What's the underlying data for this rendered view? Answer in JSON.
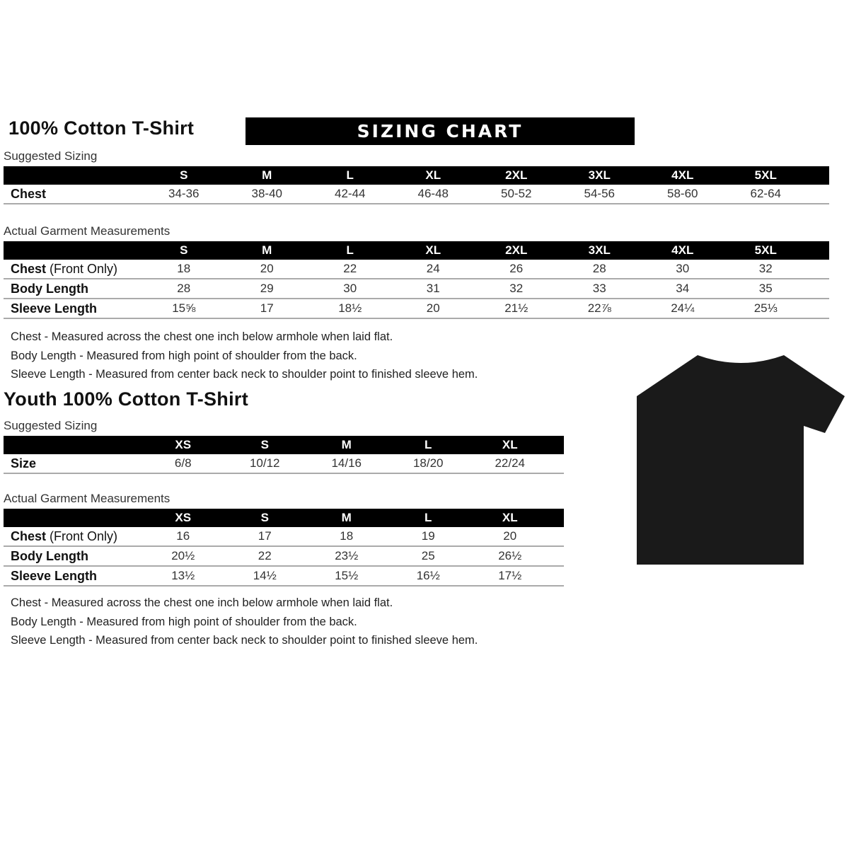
{
  "adult": {
    "title": "100% Cotton T-Shirt",
    "banner": "SIZING CHART",
    "suggested_label": "Suggested Sizing",
    "sizes": [
      "S",
      "M",
      "L",
      "XL",
      "2XL",
      "3XL",
      "4XL",
      "5XL"
    ],
    "suggested_rows": [
      {
        "label": "Chest",
        "values": [
          "34-36",
          "38-40",
          "42-44",
          "46-48",
          "50-52",
          "54-56",
          "58-60",
          "62-64"
        ]
      }
    ],
    "actual_label": "Actual Garment Measurements",
    "actual_rows": [
      {
        "label": "Chest",
        "label_extra": " (Front Only)",
        "values": [
          "18",
          "20",
          "22",
          "24",
          "26",
          "28",
          "30",
          "32"
        ]
      },
      {
        "label": "Body Length",
        "values": [
          "28",
          "29",
          "30",
          "31",
          "32",
          "33",
          "34",
          "35"
        ]
      },
      {
        "label": "Sleeve Length",
        "values": [
          "15⅝",
          "17",
          "18½",
          "20",
          "21½",
          "22⅞",
          "24¼",
          "25⅓"
        ]
      }
    ],
    "notes": [
      "Chest - Measured across the chest one inch below armhole when laid flat.",
      "Body Length - Measured from high point of shoulder from the back.",
      "Sleeve Length - Measured from center back neck to shoulder point to finished sleeve hem."
    ]
  },
  "youth": {
    "title": "Youth 100% Cotton T-Shirt",
    "suggested_label": "Suggested Sizing",
    "sizes": [
      "XS",
      "S",
      "M",
      "L",
      "XL"
    ],
    "suggested_rows": [
      {
        "label": "Size",
        "values": [
          "6/8",
          "10/12",
          "14/16",
          "18/20",
          "22/24"
        ]
      }
    ],
    "actual_label": "Actual Garment Measurements",
    "actual_rows": [
      {
        "label": "Chest",
        "label_extra": " (Front Only)",
        "values": [
          "16",
          "17",
          "18",
          "19",
          "20"
        ]
      },
      {
        "label": "Body Length",
        "values": [
          "20½",
          "22",
          "23½",
          "25",
          "26½"
        ]
      },
      {
        "label": "Sleeve Length",
        "values": [
          "13½",
          "14½",
          "15½",
          "16½",
          "17½"
        ]
      }
    ],
    "notes": [
      "Chest - Measured across the chest one inch below armhole when laid flat.",
      "Body Length - Measured from high point of shoulder from the back.",
      "Sleeve Length - Measured from center back neck to shoulder point to finished sleeve hem."
    ]
  },
  "shirt_color": "#1a1a1a"
}
